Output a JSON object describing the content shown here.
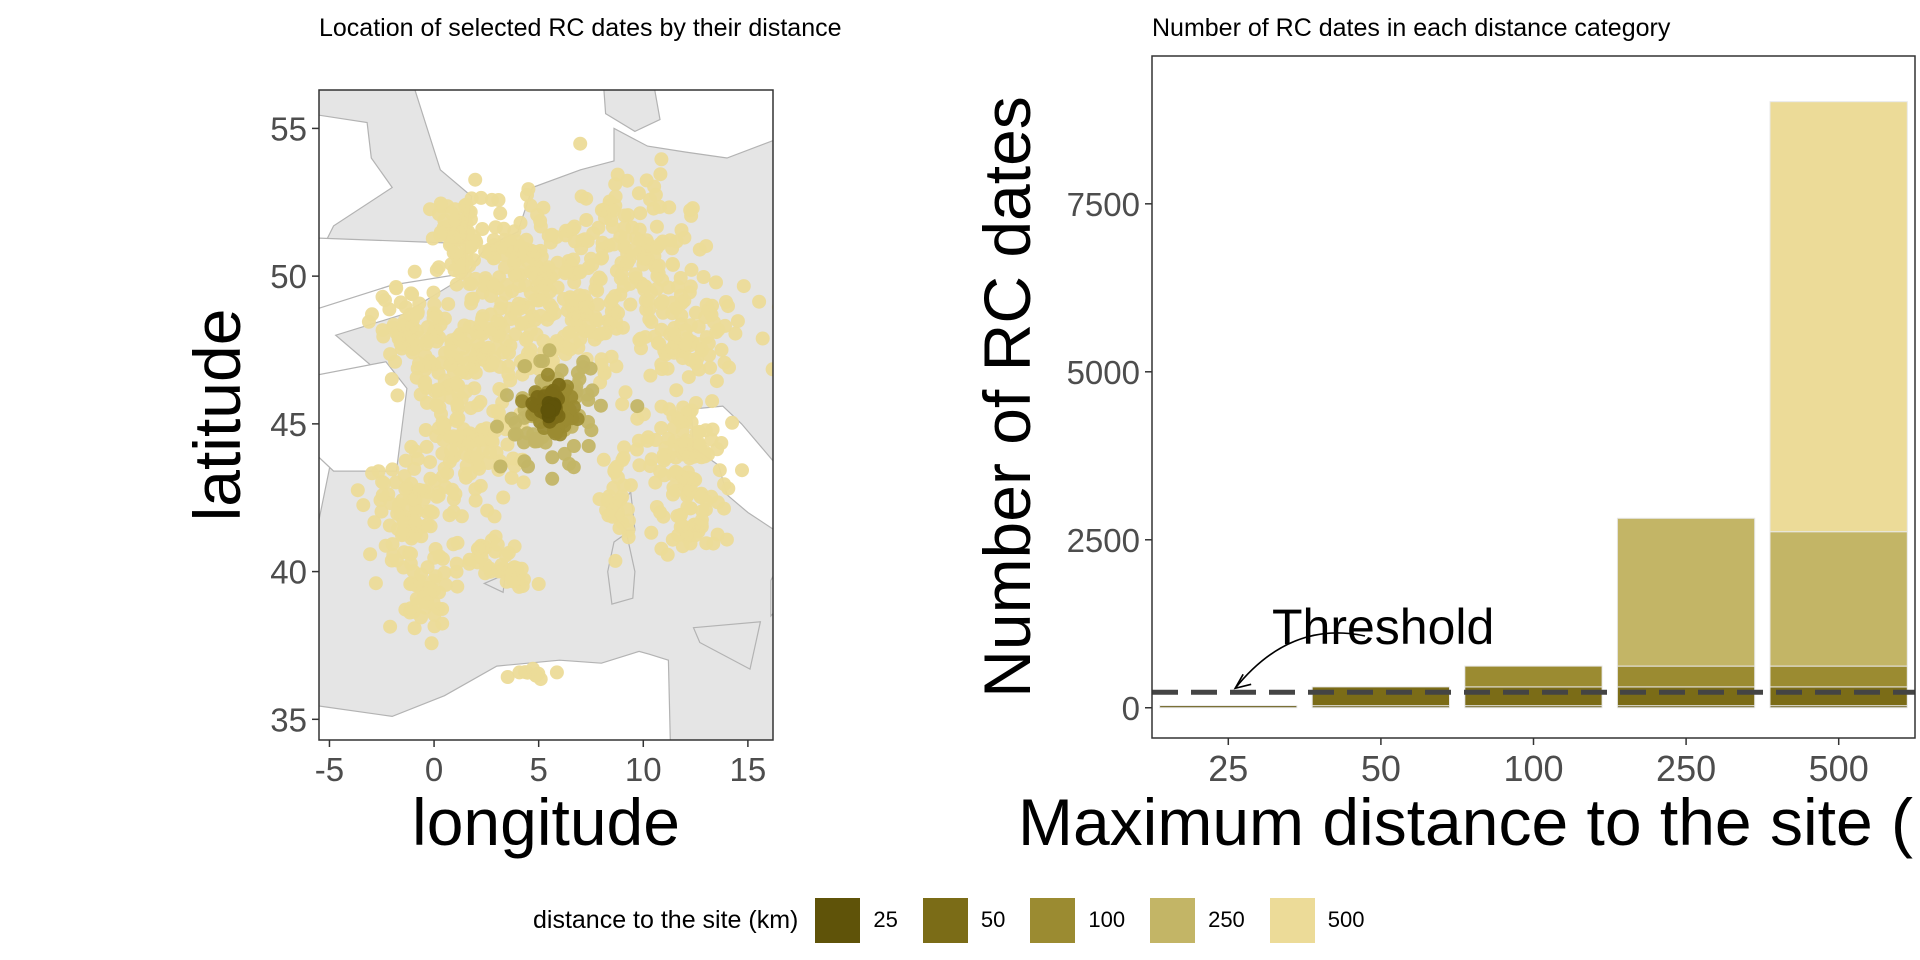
{
  "colors": {
    "class_25": "#5f5309",
    "class_50": "#7b6c17",
    "class_100": "#9b8b31",
    "class_250": "#c3b566",
    "class_500": "#ecdb98",
    "land": "#e5e5e5",
    "sea": "#ffffff",
    "border": "#b3b3b3",
    "threshold": "#444444"
  },
  "map_chart": {
    "type": "scatter",
    "title": "Location of selected RC dates by their distance",
    "xlabel": "longitude",
    "ylabel": "latitude",
    "xlim": [
      -5.5,
      16.2
    ],
    "ylim": [
      34.3,
      56.3
    ],
    "x_ticks": [
      "-5",
      "0",
      "5",
      "10",
      "15"
    ],
    "y_ticks": [
      "35",
      "40",
      "45",
      "50",
      "55"
    ],
    "site_location": {
      "lon": 5.6,
      "lat": 45.5
    },
    "point_clusters": [
      {
        "category": "500",
        "lon": 1.2,
        "lat": 51.3,
        "spread_lon": 1.4,
        "spread_lat": 1.2,
        "count": 60
      },
      {
        "category": "500",
        "lon": 4.8,
        "lat": 50.3,
        "spread_lon": 3.2,
        "spread_lat": 2.1,
        "count": 150
      },
      {
        "category": "500",
        "lon": 9.0,
        "lat": 50.6,
        "spread_lon": 3.0,
        "spread_lat": 2.6,
        "count": 150
      },
      {
        "category": "500",
        "lon": 12.0,
        "lat": 48.0,
        "spread_lon": 2.8,
        "spread_lat": 1.8,
        "count": 90
      },
      {
        "category": "500",
        "lon": 1.2,
        "lat": 47.2,
        "spread_lon": 2.4,
        "spread_lat": 1.8,
        "count": 110
      },
      {
        "category": "500",
        "lon": -1.2,
        "lat": 48.2,
        "spread_lon": 1.5,
        "spread_lat": 1.2,
        "count": 50
      },
      {
        "category": "500",
        "lon": 1.5,
        "lat": 44.0,
        "spread_lon": 2.4,
        "spread_lat": 1.5,
        "count": 90
      },
      {
        "category": "500",
        "lon": -1.0,
        "lat": 42.0,
        "spread_lon": 2.0,
        "spread_lat": 1.8,
        "count": 90
      },
      {
        "category": "500",
        "lon": -0.4,
        "lat": 39.3,
        "spread_lon": 1.3,
        "spread_lat": 1.2,
        "count": 40
      },
      {
        "category": "500",
        "lon": 2.8,
        "lat": 40.5,
        "spread_lon": 1.8,
        "spread_lat": 0.9,
        "count": 30
      },
      {
        "category": "500",
        "lon": 11.7,
        "lat": 44.3,
        "spread_lon": 2.2,
        "spread_lat": 1.5,
        "count": 80
      },
      {
        "category": "500",
        "lon": 12.4,
        "lat": 42.0,
        "spread_lon": 1.7,
        "spread_lat": 1.5,
        "count": 60
      },
      {
        "category": "500",
        "lon": 8.8,
        "lat": 42.4,
        "spread_lon": 0.6,
        "spread_lat": 1.6,
        "count": 30
      },
      {
        "category": "500",
        "lon": 3.8,
        "lat": 39.8,
        "spread_lon": 1.0,
        "spread_lat": 0.4,
        "count": 15
      },
      {
        "category": "500",
        "lon": 4.7,
        "lat": 36.5,
        "spread_lon": 1.4,
        "spread_lat": 0.3,
        "count": 10
      },
      {
        "category": "500",
        "lon": 5.6,
        "lat": 47.8,
        "spread_lon": 3.4,
        "spread_lat": 1.6,
        "count": 90
      },
      {
        "category": "250",
        "lon": 5.6,
        "lat": 45.3,
        "spread_lon": 2.1,
        "spread_lat": 1.6,
        "count": 90
      },
      {
        "category": "100",
        "lon": 5.6,
        "lat": 45.5,
        "spread_lon": 1.0,
        "spread_lat": 0.75,
        "count": 55
      },
      {
        "category": "50",
        "lon": 5.6,
        "lat": 45.5,
        "spread_lon": 0.55,
        "spread_lat": 0.45,
        "count": 35
      },
      {
        "category": "25",
        "lon": 5.6,
        "lat": 45.5,
        "spread_lon": 0.25,
        "spread_lat": 0.22,
        "count": 18
      }
    ]
  },
  "chart_data": {
    "type": "bar",
    "stacked": true,
    "title": "Number of RC dates in each distance category",
    "xlabel": "Maximum distance to the site (",
    "ylabel": "Number of RC dates",
    "categories": [
      "25",
      "50",
      "100",
      "250",
      "500"
    ],
    "y_ticks": [
      "0",
      "2500",
      "5000",
      "7500"
    ],
    "ylim": [
      -450,
      9700
    ],
    "series": [
      {
        "color_key": "class_25",
        "values": [
          30,
          30,
          30,
          30,
          30
        ]
      },
      {
        "color_key": "class_50",
        "values": [
          0,
          280,
          280,
          280,
          280
        ]
      },
      {
        "color_key": "class_100",
        "values": [
          0,
          0,
          310,
          310,
          310
        ]
      },
      {
        "color_key": "class_250",
        "values": [
          0,
          0,
          0,
          2200,
          2000
        ]
      },
      {
        "color_key": "class_500",
        "values": [
          0,
          0,
          0,
          0,
          6400
        ]
      }
    ],
    "totals": [
      30,
      310,
      620,
      2820,
      9020
    ],
    "threshold": {
      "value": 230,
      "label": "Threshold"
    }
  },
  "legend": {
    "title": "distance to the site (km)",
    "items": [
      {
        "label": "25",
        "color_key": "class_25"
      },
      {
        "label": "50",
        "color_key": "class_50"
      },
      {
        "label": "100",
        "color_key": "class_100"
      },
      {
        "label": "250",
        "color_key": "class_250"
      },
      {
        "label": "500",
        "color_key": "class_500"
      }
    ]
  }
}
